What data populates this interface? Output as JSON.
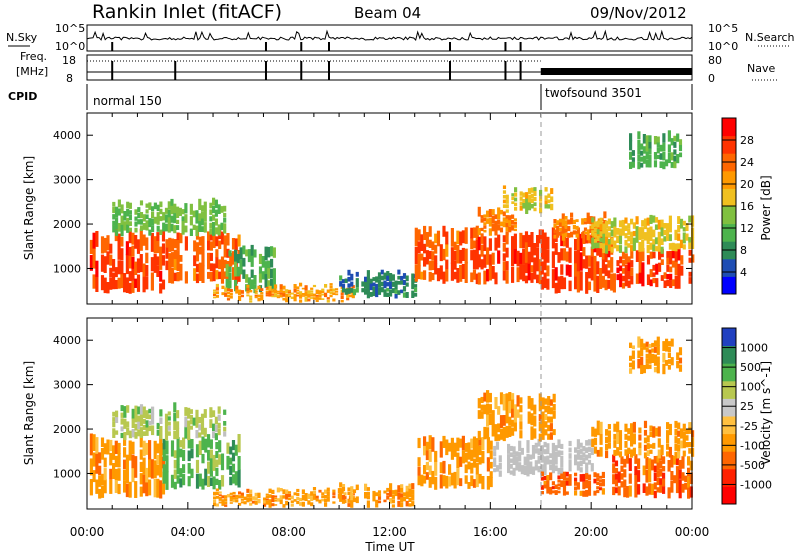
{
  "header": {
    "station": "Rankin Inlet (fitACF)",
    "beam": "Beam 04",
    "date": "09/Nov/2012"
  },
  "strips": {
    "nsky_label": "N.Sky",
    "nsearch_label": "N.Search",
    "nsky_ticks": [
      "10^5",
      "10^0"
    ],
    "nsearch_ticks": [
      "10^5",
      "10^0"
    ],
    "freq_label": "Freq.",
    "freq_unit": "[MHz]",
    "freq_ticks": [
      "18",
      "8"
    ],
    "nave_label": "Nave",
    "nave_ticks": [
      "80",
      "0"
    ],
    "cpid_label": "CPID",
    "cpid_segments": [
      {
        "name": "normal 150",
        "start": "00:00",
        "end": "18:00"
      },
      {
        "name": "twofsound 3501",
        "start": "18:00",
        "end": "00:00"
      }
    ],
    "mode_change_time": "18:00"
  },
  "colors": {
    "power_scale": [
      "#0000ff",
      "#1e4db3",
      "#2e8b57",
      "#4db34d",
      "#80c040",
      "#f0c020",
      "#ff9900",
      "#ff6600",
      "#ff3300",
      "#ff0000"
    ],
    "velocity_scale": [
      "#2040c0",
      "#2e8b57",
      "#4db34d",
      "#b8c850",
      "#c8c8c8",
      "#ffc040",
      "#ff9900",
      "#ff6600",
      "#ff2000",
      "#ff0000"
    ],
    "ground_scatter": "#c0c0c0"
  },
  "chart_data": [
    {
      "type": "heatmap",
      "name": "power",
      "ylabel": "Slant Range [km]",
      "ylim": [
        200,
        4500
      ],
      "yticks": [
        1000,
        2000,
        3000,
        4000
      ],
      "xlabel": "",
      "xticks": [
        "00:00",
        "04:00",
        "08:00",
        "12:00",
        "16:00",
        "20:00",
        "00:00"
      ],
      "colorbar": {
        "label": "Power [dB]",
        "ticks": [
          4,
          8,
          12,
          16,
          20,
          24,
          28
        ],
        "range": [
          0,
          30
        ]
      },
      "regions": [
        {
          "t0": 0.0,
          "t1": 3.0,
          "r0": 500,
          "r1": 1800,
          "level": 26
        },
        {
          "t0": 3.0,
          "t1": 6.0,
          "r0": 700,
          "r1": 1800,
          "level": 24
        },
        {
          "t0": 1.0,
          "t1": 5.5,
          "r0": 1800,
          "r1": 2500,
          "level": 12
        },
        {
          "t0": 5.5,
          "t1": 7.5,
          "r0": 500,
          "r1": 1500,
          "level": 10
        },
        {
          "t0": 5.0,
          "t1": 10.5,
          "r0": 300,
          "r1": 600,
          "level": 20
        },
        {
          "t0": 10.0,
          "t1": 13.0,
          "r0": 400,
          "r1": 900,
          "level": 6
        },
        {
          "t0": 13.0,
          "t1": 15.5,
          "r0": 700,
          "r1": 1900,
          "level": 24
        },
        {
          "t0": 15.5,
          "t1": 18.0,
          "r0": 700,
          "r1": 1800,
          "level": 26
        },
        {
          "t0": 15.5,
          "t1": 17.0,
          "r0": 1800,
          "r1": 2300,
          "level": 22
        },
        {
          "t0": 16.5,
          "t1": 18.5,
          "r0": 2300,
          "r1": 2800,
          "level": 16
        },
        {
          "t0": 18.0,
          "t1": 21.0,
          "r0": 500,
          "r1": 1800,
          "level": 26
        },
        {
          "t0": 18.5,
          "t1": 20.5,
          "r0": 1700,
          "r1": 2200,
          "level": 22
        },
        {
          "t0": 21.0,
          "t1": 24.0,
          "r0": 600,
          "r1": 1400,
          "level": 26
        },
        {
          "t0": 20.0,
          "t1": 24.0,
          "r0": 1400,
          "r1": 2100,
          "level": 16
        },
        {
          "t0": 21.5,
          "t1": 23.5,
          "r0": 3300,
          "r1": 4000,
          "level": 10
        }
      ]
    },
    {
      "type": "heatmap",
      "name": "velocity",
      "ylabel": "Slant Range [km]",
      "ylim": [
        200,
        4500
      ],
      "yticks": [
        1000,
        2000,
        3000,
        4000
      ],
      "xlabel": "Time UT",
      "xticks": [
        "00:00",
        "04:00",
        "08:00",
        "12:00",
        "16:00",
        "20:00",
        "00:00"
      ],
      "colorbar": {
        "label": "Velocity [m s^-1]",
        "ticks": [
          "1000",
          "500",
          "100",
          "25",
          "-25",
          "-100",
          "-500",
          "-1000"
        ],
        "range": [
          -1200,
          1200
        ]
      },
      "regions": [
        {
          "t0": 0.0,
          "t1": 3.0,
          "r0": 500,
          "r1": 1800,
          "level": "-100"
        },
        {
          "t0": 3.0,
          "t1": 6.0,
          "r0": 700,
          "r1": 1800,
          "level": "100"
        },
        {
          "t0": 1.0,
          "t1": 5.5,
          "r0": 1800,
          "r1": 2500,
          "level": "25"
        },
        {
          "t0": 5.0,
          "t1": 10.5,
          "r0": 300,
          "r1": 600,
          "level": "-100"
        },
        {
          "t0": 10.0,
          "t1": 13.0,
          "r0": 300,
          "r1": 700,
          "level": "-100"
        },
        {
          "t0": 13.0,
          "t1": 16.0,
          "r0": 700,
          "r1": 1800,
          "level": "-100"
        },
        {
          "t0": 16.0,
          "t1": 18.0,
          "r0": 1000,
          "r1": 1700,
          "level": "gs"
        },
        {
          "t0": 15.5,
          "t1": 18.5,
          "r0": 1800,
          "r1": 2800,
          "level": "-100"
        },
        {
          "t0": 18.0,
          "t1": 20.0,
          "r0": 1000,
          "r1": 1700,
          "level": "gs"
        },
        {
          "t0": 18.0,
          "t1": 20.5,
          "r0": 500,
          "r1": 1000,
          "level": "-500"
        },
        {
          "t0": 20.5,
          "t1": 24.0,
          "r0": 500,
          "r1": 1400,
          "level": "-500"
        },
        {
          "t0": 20.0,
          "t1": 24.0,
          "r0": 1400,
          "r1": 2100,
          "level": "-100"
        },
        {
          "t0": 21.5,
          "t1": 23.5,
          "r0": 3300,
          "r1": 4000,
          "level": "-100"
        }
      ]
    }
  ]
}
